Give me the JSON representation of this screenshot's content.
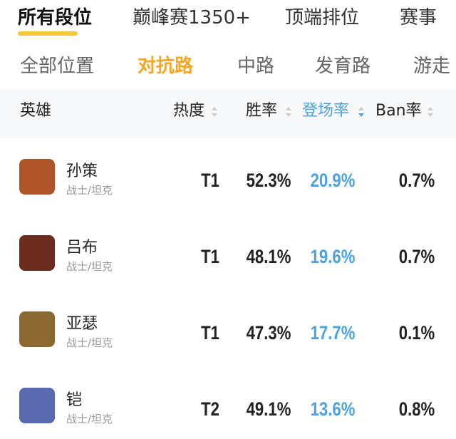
{
  "tabs": {
    "items": [
      "所有段位",
      "巅峰赛1350+",
      "顶端排位",
      "赛事"
    ],
    "active": 0
  },
  "positions": {
    "items": [
      "全部位置",
      "对抗路",
      "中路",
      "发育路",
      "游走"
    ],
    "active": 1
  },
  "table": {
    "headers": [
      "英雄",
      "热度",
      "胜率",
      "登场率",
      "Ban率"
    ],
    "sorted": 3,
    "rows": [
      [
        "孙策",
        "战士/坦克",
        "T1",
        "52.3%",
        "20.9%",
        "0.7%"
      ],
      [
        "吕布",
        "战士/坦克",
        "T1",
        "48.1%",
        "19.6%",
        "0.7%"
      ],
      [
        "亚瑟",
        "战士/坦克",
        "T1",
        "47.3%",
        "17.7%",
        "0.1%"
      ],
      [
        "铠",
        "战士/坦克",
        "T2",
        "49.1%",
        "13.6%",
        "0.8%"
      ]
    ]
  }
}
